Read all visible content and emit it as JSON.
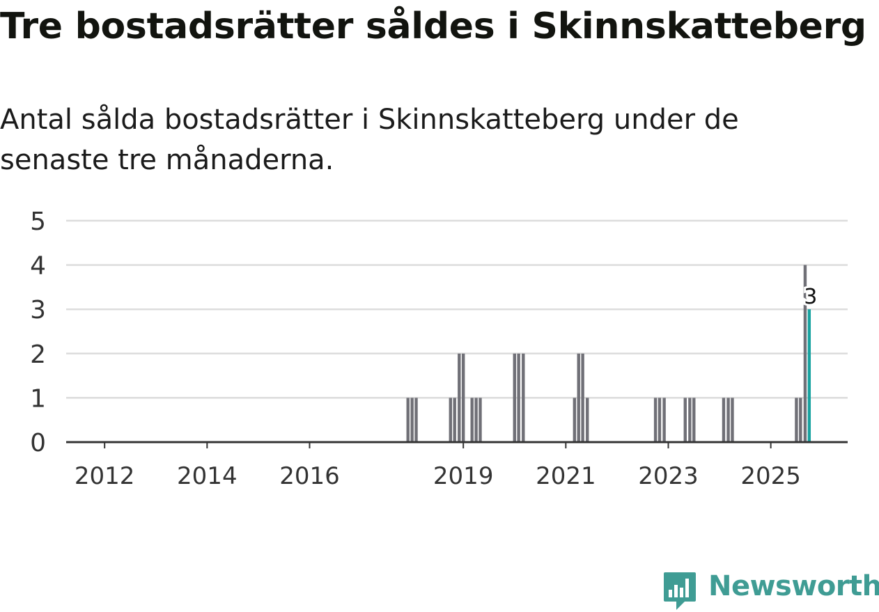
{
  "title": "Tre bostadsrätter såldes i Skinnskatteberg",
  "subtitle": "Antal sålda bostadsrätter i Skinnskatteberg under de senaste tre månaderna.",
  "brand": {
    "name": "Newsworthy",
    "color": "#3f9c94"
  },
  "colors": {
    "bar": "#707077",
    "highlight": "#17a2a0",
    "grid": "#dcdcdc",
    "axis": "#333333"
  },
  "chart_data": {
    "type": "bar",
    "title": "Tre bostadsrätter såldes i Skinnskatteberg",
    "xlabel": "",
    "ylabel": "",
    "ylim": [
      0,
      5
    ],
    "yticks": [
      0,
      1,
      2,
      3,
      4,
      5
    ],
    "xlim": [
      2011.25,
      2026.5
    ],
    "xtick_labels": [
      "2012",
      "2014",
      "2016",
      "2019",
      "2021",
      "2023",
      "2025"
    ],
    "xtick_values": [
      2012,
      2014,
      2016,
      2019,
      2021,
      2023,
      2025
    ],
    "series": [
      {
        "name": "Antal sålda bostadsrätter",
        "points": [
          {
            "x": 2017.92,
            "y": 1
          },
          {
            "x": 2018.0,
            "y": 1
          },
          {
            "x": 2018.08,
            "y": 1
          },
          {
            "x": 2018.75,
            "y": 1
          },
          {
            "x": 2018.83,
            "y": 1
          },
          {
            "x": 2018.92,
            "y": 2
          },
          {
            "x": 2019.0,
            "y": 2
          },
          {
            "x": 2019.17,
            "y": 1
          },
          {
            "x": 2019.25,
            "y": 1
          },
          {
            "x": 2019.33,
            "y": 1
          },
          {
            "x": 2020.0,
            "y": 2
          },
          {
            "x": 2020.08,
            "y": 2
          },
          {
            "x": 2020.17,
            "y": 2
          },
          {
            "x": 2021.17,
            "y": 1
          },
          {
            "x": 2021.25,
            "y": 2
          },
          {
            "x": 2021.33,
            "y": 2
          },
          {
            "x": 2021.42,
            "y": 1
          },
          {
            "x": 2022.75,
            "y": 1
          },
          {
            "x": 2022.83,
            "y": 1
          },
          {
            "x": 2022.92,
            "y": 1
          },
          {
            "x": 2023.33,
            "y": 1
          },
          {
            "x": 2023.42,
            "y": 1
          },
          {
            "x": 2023.5,
            "y": 1
          },
          {
            "x": 2024.08,
            "y": 1
          },
          {
            "x": 2024.17,
            "y": 1
          },
          {
            "x": 2024.25,
            "y": 1
          },
          {
            "x": 2025.5,
            "y": 1
          },
          {
            "x": 2025.58,
            "y": 1
          },
          {
            "x": 2025.67,
            "y": 4
          },
          {
            "x": 2025.75,
            "y": 3,
            "highlight": true,
            "label": "3"
          }
        ]
      }
    ]
  }
}
